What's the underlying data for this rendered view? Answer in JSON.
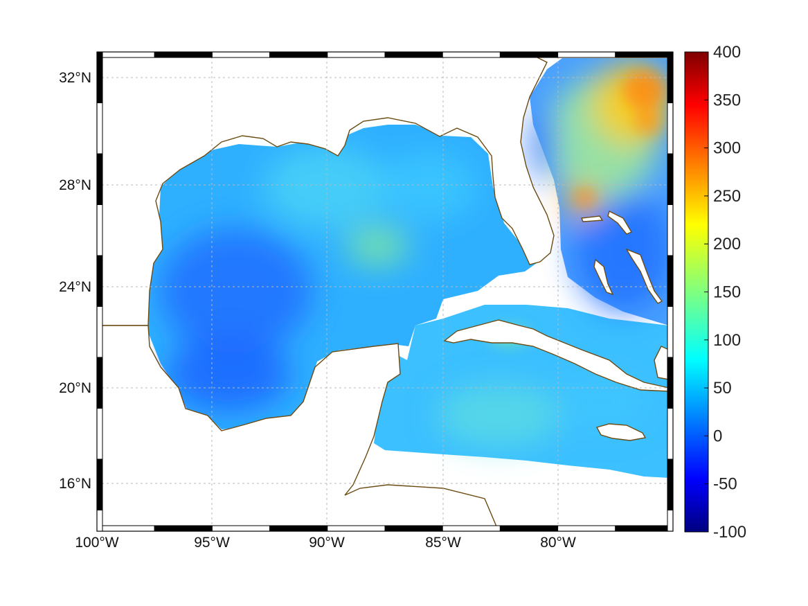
{
  "figure": {
    "x_ticks": [
      "100°W",
      "95°W",
      "90°W",
      "85°W",
      "80°W"
    ],
    "y_ticks": [
      "32°N",
      "28°N",
      "24°N",
      "20°N",
      "16°N"
    ]
  },
  "map": {
    "type": "heatmap",
    "projection": "mercator",
    "lon_range": [
      -100,
      -75
    ],
    "lat_range": [
      14.2,
      33
    ],
    "grid": true,
    "coastline_color": "#6b4a12",
    "land_color": "#ffffff",
    "colormap": "jet",
    "regions_depicted": [
      "Gulf of Mexico",
      "Florida",
      "Cuba",
      "Jamaica",
      "Bahamas",
      "Yucatan Peninsula",
      "Atlantic Ocean"
    ]
  },
  "colorbar": {
    "min": -100,
    "max": 400,
    "tick_labels": [
      "400",
      "350",
      "300",
      "250",
      "200",
      "150",
      "100",
      "50",
      "0",
      "-50",
      "-100"
    ],
    "colors": [
      "#00007f",
      "#0000ff",
      "#007fff",
      "#00ffff",
      "#7fff7f",
      "#ffff00",
      "#ff7f00",
      "#ff0000",
      "#7f0000"
    ]
  }
}
